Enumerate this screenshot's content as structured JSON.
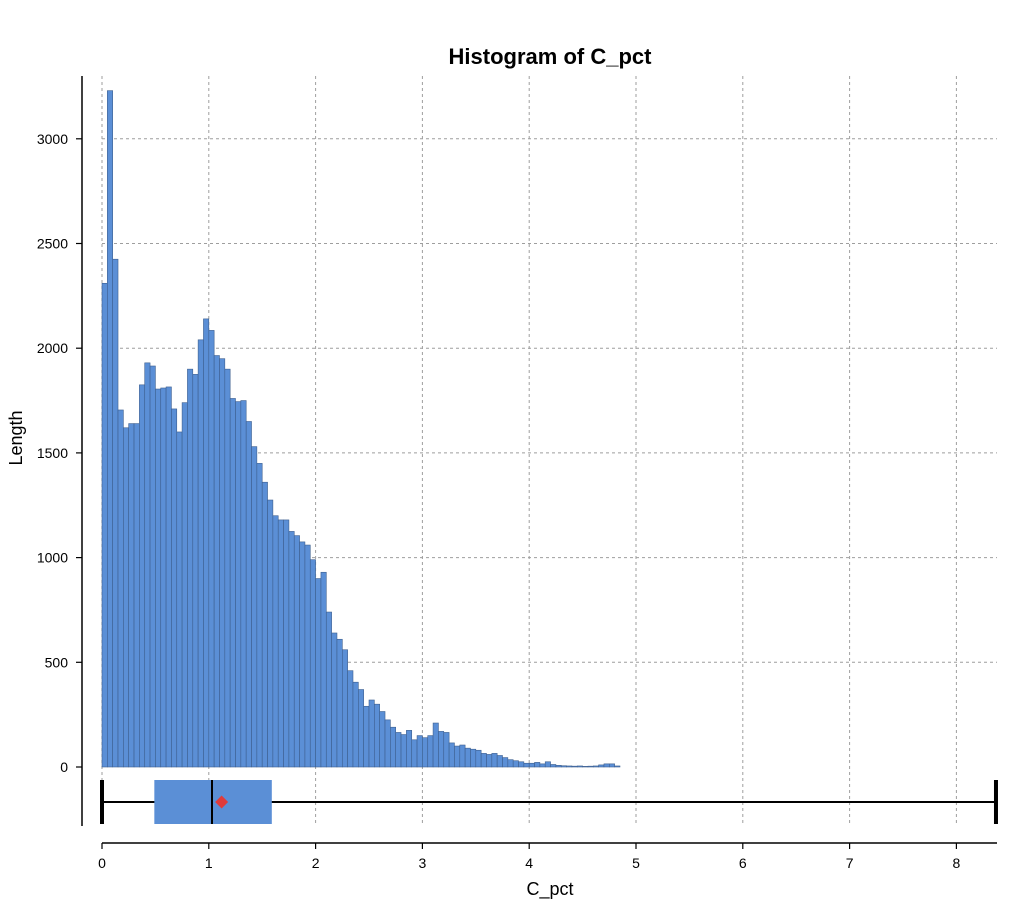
{
  "chart_data": {
    "type": "bar",
    "title": "Histogram of C_pct",
    "xlabel": "C_pct",
    "ylabel": "Length",
    "xlim": [
      0,
      8.38
    ],
    "ylim": [
      0,
      3250
    ],
    "grid": true,
    "x_ticks": [
      0,
      1,
      2,
      3,
      4,
      5,
      6,
      7,
      8
    ],
    "y_ticks": [
      0,
      500,
      1000,
      1500,
      2000,
      2500,
      3000
    ],
    "bin_width": 0.05,
    "bin_start": 0,
    "values": [
      2310,
      3230,
      2425,
      1705,
      1620,
      1640,
      1640,
      1825,
      1930,
      1915,
      1805,
      1810,
      1815,
      1710,
      1600,
      1740,
      1900,
      1875,
      2040,
      2140,
      2085,
      1965,
      1950,
      1900,
      1760,
      1745,
      1750,
      1650,
      1530,
      1450,
      1360,
      1275,
      1200,
      1180,
      1180,
      1125,
      1105,
      1075,
      1060,
      990,
      900,
      930,
      740,
      640,
      610,
      560,
      460,
      405,
      370,
      290,
      320,
      300,
      265,
      225,
      190,
      165,
      155,
      175,
      130,
      150,
      140,
      150,
      210,
      170,
      165,
      115,
      100,
      105,
      90,
      85,
      80,
      65,
      60,
      65,
      55,
      45,
      35,
      30,
      25,
      18,
      18,
      22,
      15,
      25,
      12,
      8,
      6,
      5,
      4,
      5,
      3,
      4,
      5,
      10,
      15,
      15,
      5
    ],
    "box": {
      "min": 0,
      "q1": 0.49,
      "median": 1.03,
      "mean": 1.12,
      "q3": 1.59,
      "max": 8.38
    },
    "colors": {
      "bar": "#5b8fd6",
      "box": "#5b8fd6",
      "mean_marker": "#e03b3b"
    }
  }
}
